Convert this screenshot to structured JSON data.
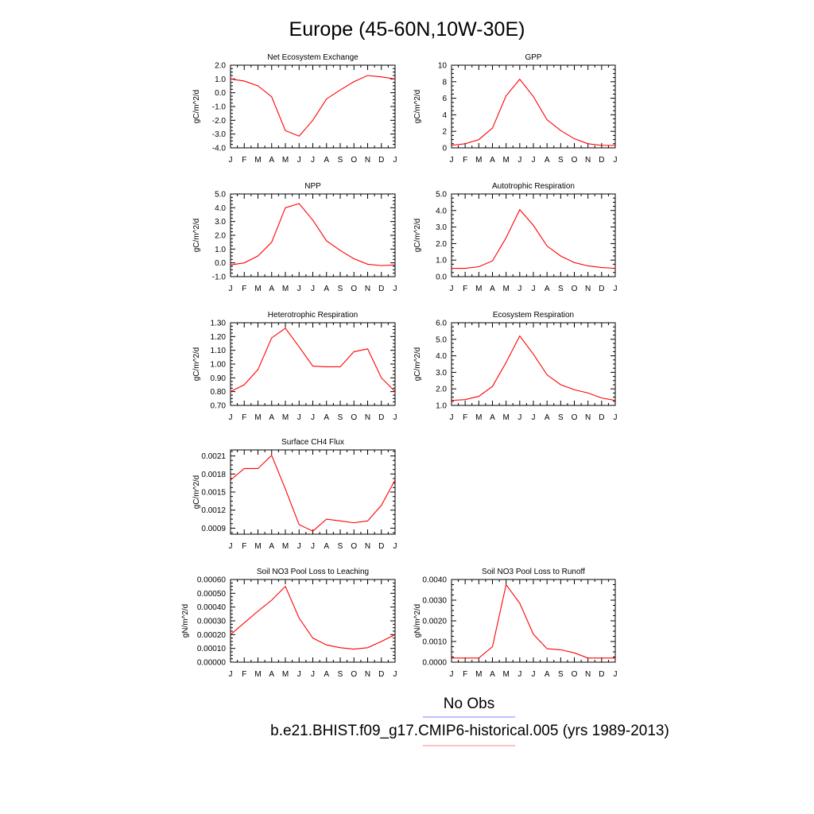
{
  "figure": {
    "title": "Europe (45-60N,10W-30E)",
    "legend": [
      {
        "label": "No Obs",
        "color": "#7f7fff"
      },
      {
        "label": "b.e21.BHIST.f09_g17.CMIP6-historical.005 (yrs 1989-2013)",
        "color": "#ff7f7f"
      }
    ],
    "line_color": "#ff0000",
    "month_labels": [
      "J",
      "F",
      "M",
      "A",
      "M",
      "J",
      "J",
      "A",
      "S",
      "O",
      "N",
      "D",
      "J"
    ]
  },
  "chart_data": [
    {
      "type": "line",
      "title": "Net Ecosystem Exchange",
      "ylabel": "gC/m^2/d",
      "ylim": [
        -4.0,
        2.0
      ],
      "yticks": [
        -4.0,
        -3.0,
        -2.0,
        -1.0,
        0.0,
        1.0,
        2.0
      ],
      "yticklabels": [
        "-4.0",
        "-3.0",
        "-2.0",
        "-1.0",
        "0.0",
        "1.0",
        "2.0"
      ],
      "categories": [
        "J",
        "F",
        "M",
        "A",
        "M",
        "J",
        "J",
        "A",
        "S",
        "O",
        "N",
        "D",
        "J"
      ],
      "values": [
        1.0,
        0.85,
        0.5,
        -0.3,
        -2.75,
        -3.15,
        -2.0,
        -0.45,
        0.2,
        0.8,
        1.25,
        1.15,
        1.0
      ]
    },
    {
      "type": "line",
      "title": "GPP",
      "ylabel": "gC/m^2/d",
      "ylim": [
        0,
        10
      ],
      "yticks": [
        0,
        2,
        4,
        6,
        8,
        10
      ],
      "yticklabels": [
        "0",
        "2",
        "4",
        "6",
        "8",
        "10"
      ],
      "categories": [
        "J",
        "F",
        "M",
        "A",
        "M",
        "J",
        "J",
        "A",
        "S",
        "O",
        "N",
        "D",
        "J"
      ],
      "values": [
        0.3,
        0.5,
        1.0,
        2.4,
        6.3,
        8.3,
        6.2,
        3.4,
        2.1,
        1.1,
        0.5,
        0.3,
        0.3
      ]
    },
    {
      "type": "line",
      "title": "NPP",
      "ylabel": "gC/m^2/d",
      "ylim": [
        -1.0,
        5.0
      ],
      "yticks": [
        -1.0,
        0.0,
        1.0,
        2.0,
        3.0,
        4.0,
        5.0
      ],
      "yticklabels": [
        "-1.0",
        "0.0",
        "1.0",
        "2.0",
        "3.0",
        "4.0",
        "5.0"
      ],
      "categories": [
        "J",
        "F",
        "M",
        "A",
        "M",
        "J",
        "J",
        "A",
        "S",
        "O",
        "N",
        "D",
        "J"
      ],
      "values": [
        -0.15,
        0.0,
        0.5,
        1.5,
        4.0,
        4.3,
        3.1,
        1.6,
        0.9,
        0.3,
        -0.1,
        -0.2,
        -0.15
      ]
    },
    {
      "type": "line",
      "title": "Autotrophic Respiration",
      "ylabel": "gC/m^2/d",
      "ylim": [
        0.0,
        5.0
      ],
      "yticks": [
        0.0,
        1.0,
        2.0,
        3.0,
        4.0,
        5.0
      ],
      "yticklabels": [
        "0.0",
        "1.0",
        "2.0",
        "3.0",
        "4.0",
        "5.0"
      ],
      "categories": [
        "J",
        "F",
        "M",
        "A",
        "M",
        "J",
        "J",
        "A",
        "S",
        "O",
        "N",
        "D",
        "J"
      ],
      "values": [
        0.5,
        0.5,
        0.6,
        0.95,
        2.35,
        4.05,
        3.1,
        1.85,
        1.25,
        0.85,
        0.65,
        0.55,
        0.5
      ]
    },
    {
      "type": "line",
      "title": "Heterotrophic Respiration",
      "ylabel": "gC/m^2/d",
      "ylim": [
        0.7,
        1.3
      ],
      "yticks": [
        0.7,
        0.8,
        0.9,
        1.0,
        1.1,
        1.2,
        1.3
      ],
      "yticklabels": [
        "0.70",
        "0.80",
        "0.90",
        "1.00",
        "1.10",
        "1.20",
        "1.30"
      ],
      "categories": [
        "J",
        "F",
        "M",
        "A",
        "M",
        "J",
        "J",
        "A",
        "S",
        "O",
        "N",
        "D",
        "J"
      ],
      "values": [
        0.8,
        0.85,
        0.96,
        1.19,
        1.26,
        1.125,
        0.985,
        0.98,
        0.98,
        1.09,
        1.11,
        0.9,
        0.8
      ]
    },
    {
      "type": "line",
      "title": "Ecosystem Respiration",
      "ylabel": "gC/m^2/d",
      "ylim": [
        1.0,
        6.0
      ],
      "yticks": [
        1.0,
        2.0,
        3.0,
        4.0,
        5.0,
        6.0
      ],
      "yticklabels": [
        "1.0",
        "2.0",
        "3.0",
        "4.0",
        "5.0",
        "6.0"
      ],
      "categories": [
        "J",
        "F",
        "M",
        "A",
        "M",
        "J",
        "J",
        "A",
        "S",
        "O",
        "N",
        "D",
        "J"
      ],
      "values": [
        1.3,
        1.35,
        1.55,
        2.15,
        3.6,
        5.2,
        4.1,
        2.85,
        2.25,
        1.95,
        1.75,
        1.45,
        1.3
      ]
    },
    {
      "type": "line",
      "title": "Surface CH4 Flux",
      "ylabel": "gC/m^2/d",
      "ylim": [
        0.0008,
        0.0022
      ],
      "yticks": [
        0.0009,
        0.0012,
        0.0015,
        0.0018,
        0.0021
      ],
      "yticklabels": [
        "0.0009",
        "0.0012",
        "0.0015",
        "0.0018",
        "0.0021"
      ],
      "categories": [
        "J",
        "F",
        "M",
        "A",
        "M",
        "J",
        "J",
        "A",
        "S",
        "O",
        "N",
        "D",
        "J"
      ],
      "values": [
        0.0017,
        0.00189,
        0.00189,
        0.00211,
        0.00155,
        0.00096,
        0.00085,
        0.00105,
        0.00102,
        0.00099,
        0.00102,
        0.00128,
        0.0017
      ]
    },
    {
      "type": "line",
      "title": "Soil NO3 Pool Loss to Leaching",
      "ylabel": "gN/m^2/d",
      "ylim": [
        0.0,
        0.0006
      ],
      "yticks": [
        0.0,
        0.0001,
        0.0002,
        0.0003,
        0.0004,
        0.0005,
        0.0006
      ],
      "yticklabels": [
        "0.00000",
        "0.00010",
        "0.00020",
        "0.00030",
        "0.00040",
        "0.00050",
        "0.00060"
      ],
      "categories": [
        "J",
        "F",
        "M",
        "A",
        "M",
        "J",
        "J",
        "A",
        "S",
        "O",
        "N",
        "D",
        "J"
      ],
      "values": [
        0.0002,
        0.000285,
        0.00037,
        0.00045,
        0.00055,
        0.00032,
        0.000175,
        0.000125,
        0.000105,
        9.5e-05,
        0.000105,
        0.00015,
        0.0002
      ]
    },
    {
      "type": "line",
      "title": "Soil NO3 Pool Loss to Runoff",
      "ylabel": "gN/m^2/d",
      "ylim": [
        0.0,
        0.004
      ],
      "yticks": [
        0.0,
        0.001,
        0.002,
        0.003,
        0.004
      ],
      "yticklabels": [
        "0.0000",
        "0.0010",
        "0.0020",
        "0.0030",
        "0.0040"
      ],
      "categories": [
        "J",
        "F",
        "M",
        "A",
        "M",
        "J",
        "J",
        "A",
        "S",
        "O",
        "N",
        "D",
        "J"
      ],
      "values": [
        0.0002,
        0.0002,
        0.0002,
        0.00075,
        0.00375,
        0.00285,
        0.00135,
        0.00065,
        0.0006,
        0.00045,
        0.0002,
        0.0002,
        0.0002
      ]
    }
  ]
}
